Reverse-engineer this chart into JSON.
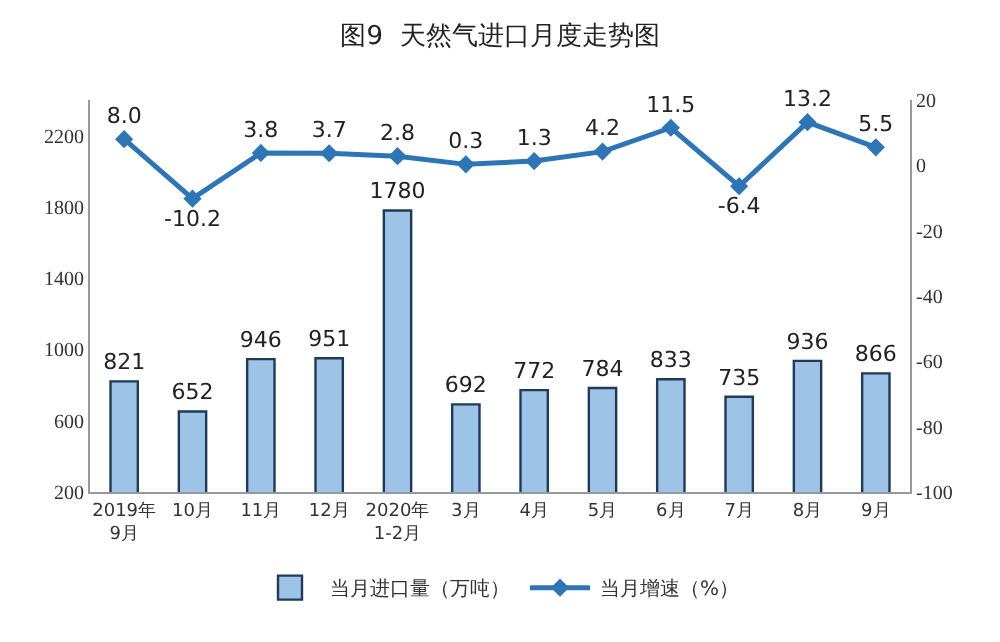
{
  "chart_data": {
    "type": "bar",
    "title": "图9  天然气进口月度走势图",
    "categories": [
      "2019年\n9月",
      "10月",
      "11月",
      "12月",
      "2020年\n1-2月",
      "3月",
      "4月",
      "5月",
      "6月",
      "7月",
      "8月",
      "9月"
    ],
    "series": [
      {
        "name": "当月进口量（万吨）",
        "color": "#9dc3e6",
        "values": [
          821,
          652,
          946,
          951,
          1780,
          692,
          772,
          784,
          833,
          735,
          936,
          866
        ]
      },
      {
        "name": "当月增速（%）",
        "type": "line",
        "axis": "y2",
        "color": "#2e75b6",
        "marker": "diamond",
        "values": [
          8.0,
          -10.2,
          3.8,
          3.7,
          2.8,
          0.3,
          1.3,
          4.2,
          11.5,
          -6.4,
          13.2,
          5.5
        ],
        "value_labels": [
          "8.0",
          "-10.2",
          "3.8",
          "3.7",
          "2.8",
          "0.3",
          "1.3",
          "4.2",
          "11.5",
          "-6.4",
          "13.2",
          "5.5"
        ]
      }
    ],
    "ylim": [
      200,
      2400
    ],
    "yticks": [
      200,
      600,
      1000,
      1400,
      1800,
      2200
    ],
    "y2lim": [
      -100,
      20
    ],
    "y2ticks": [
      -100,
      -80,
      -60,
      -40,
      -20,
      0,
      20
    ],
    "data_labels": true,
    "legend": "bottom"
  }
}
